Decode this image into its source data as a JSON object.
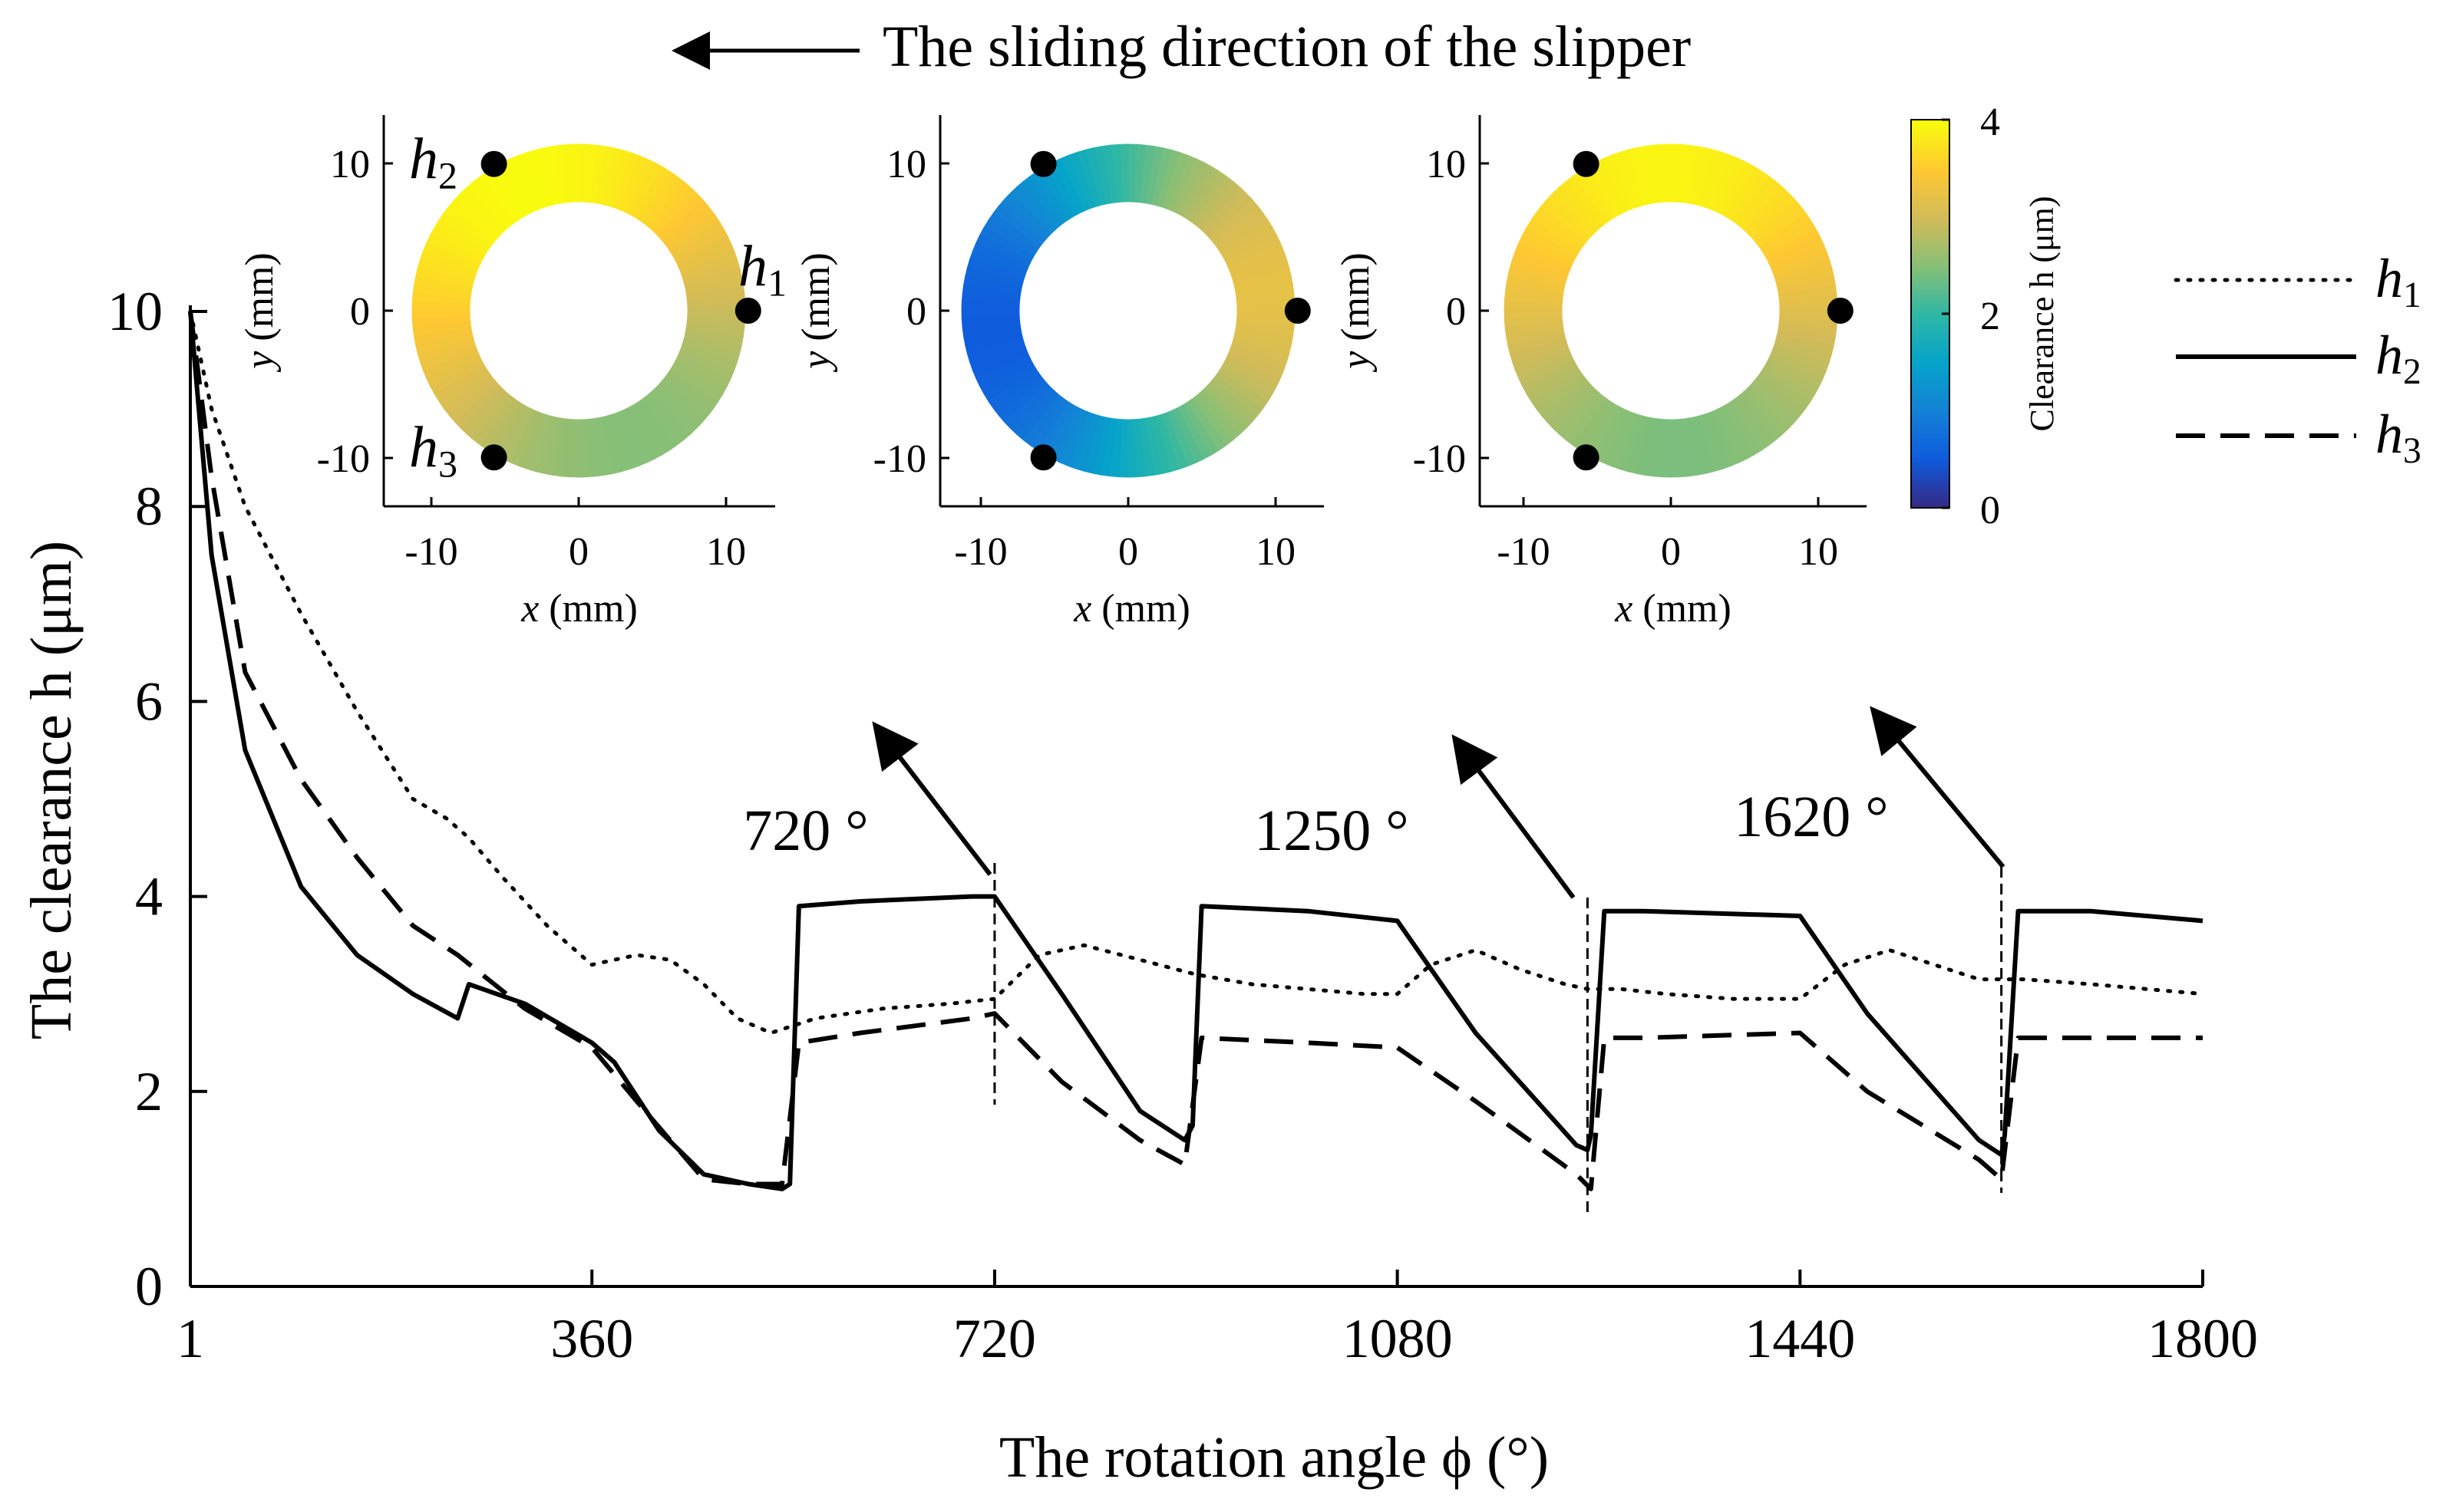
{
  "header": {
    "text": "The sliding direction of the slipper"
  },
  "colors": {
    "ink": "#000000",
    "colormap": [
      "#352a87",
      "#0f5cdd",
      "#1481d6",
      "#06a4ca",
      "#2eb7a4",
      "#87bf77",
      "#d1bb59",
      "#fec832",
      "#f9fb0e"
    ]
  },
  "chart_data": [
    {
      "type": "line",
      "xlabel": "The rotation angle ϕ (°)",
      "ylabel": "The clearance h (μm)",
      "xlim": [
        1,
        1800
      ],
      "ylim": [
        0,
        10
      ],
      "xticks": [
        1,
        360,
        720,
        1080,
        1440,
        1800
      ],
      "yticks": [
        0,
        2,
        4,
        6,
        8,
        10
      ],
      "legend_position": "right",
      "series": [
        {
          "name": "h1",
          "style": "dotted",
          "x": [
            1,
            20,
            50,
            100,
            150,
            200,
            230,
            250,
            280,
            320,
            360,
            400,
            430,
            460,
            490,
            520,
            560,
            620,
            680,
            720,
            760,
            800,
            850,
            900,
            950,
            1000,
            1050,
            1080,
            1110,
            1150,
            1190,
            1230,
            1250,
            1280,
            1320,
            1380,
            1440,
            1480,
            1520,
            1560,
            1600,
            1640,
            1700,
            1750,
            1800
          ],
          "values": [
            10,
            9.0,
            8.0,
            6.9,
            5.9,
            5.0,
            4.8,
            4.6,
            4.2,
            3.7,
            3.3,
            3.4,
            3.35,
            3.1,
            2.75,
            2.6,
            2.75,
            2.85,
            2.9,
            2.95,
            3.4,
            3.5,
            3.35,
            3.2,
            3.1,
            3.05,
            3.0,
            3.0,
            3.3,
            3.45,
            3.25,
            3.1,
            3.05,
            3.05,
            3.0,
            2.95,
            2.95,
            3.3,
            3.45,
            3.3,
            3.15,
            3.15,
            3.1,
            3.05,
            3.0
          ]
        },
        {
          "name": "h2",
          "style": "solid",
          "x": [
            1,
            20,
            50,
            100,
            150,
            200,
            240,
            250,
            300,
            360,
            380,
            420,
            460,
            500,
            530,
            537,
            545,
            600,
            700,
            720,
            780,
            850,
            890,
            897,
            905,
            1000,
            1080,
            1150,
            1240,
            1250,
            1253,
            1265,
            1300,
            1440,
            1500,
            1600,
            1620,
            1623,
            1635,
            1700,
            1800
          ],
          "values": [
            10,
            7.5,
            5.5,
            4.1,
            3.4,
            3.0,
            2.75,
            3.1,
            2.9,
            2.5,
            2.3,
            1.6,
            1.15,
            1.05,
            1.0,
            1.05,
            3.9,
            3.95,
            4.0,
            4.0,
            3.0,
            1.8,
            1.5,
            1.65,
            3.9,
            3.85,
            3.75,
            2.6,
            1.45,
            1.4,
            1.55,
            3.85,
            3.85,
            3.8,
            2.8,
            1.5,
            1.35,
            1.55,
            3.85,
            3.85,
            3.75
          ]
        },
        {
          "name": "h3",
          "style": "dashed",
          "x": [
            1,
            20,
            50,
            100,
            150,
            200,
            240,
            300,
            360,
            400,
            460,
            500,
            530,
            545,
            600,
            700,
            720,
            780,
            850,
            890,
            905,
            1000,
            1080,
            1150,
            1240,
            1253,
            1265,
            1300,
            1440,
            1500,
            1600,
            1620,
            1635,
            1700,
            1800
          ],
          "values": [
            10,
            8.3,
            6.3,
            5.2,
            4.4,
            3.7,
            3.4,
            2.85,
            2.45,
            1.9,
            1.1,
            1.05,
            1.05,
            2.5,
            2.6,
            2.75,
            2.8,
            2.1,
            1.5,
            1.25,
            2.55,
            2.5,
            2.45,
            1.9,
            1.15,
            1.0,
            2.55,
            2.55,
            2.6,
            2.0,
            1.3,
            1.1,
            2.55,
            2.55,
            2.55
          ]
        }
      ],
      "annotations": [
        {
          "label": "720 °",
          "x": 720
        },
        {
          "label": "1250 °",
          "x": 1250
        },
        {
          "label": "1620 °",
          "x": 1620
        }
      ]
    },
    {
      "type": "heatmap",
      "xlabel": "x (mm)",
      "ylabel": "y (mm)",
      "xticks": [
        -10,
        0,
        10
      ],
      "yticks": [
        -10,
        0,
        10
      ],
      "markers": {
        "h1": [
          11.5,
          0
        ],
        "h2": [
          -5.75,
          9.96
        ],
        "h3": [
          -5.75,
          -9.96
        ]
      },
      "clearance_at_markers": {
        "h1": 2.95,
        "h2": 4.0,
        "h3": 2.8
      }
    },
    {
      "type": "heatmap",
      "xlabel": "x (mm)",
      "ylabel": "y (mm)",
      "xticks": [
        -10,
        0,
        10
      ],
      "yticks": [
        -10,
        0,
        10
      ],
      "markers": {
        "h1": [
          11.5,
          0
        ],
        "h2": [
          -5.75,
          9.96
        ],
        "h3": [
          -5.75,
          -9.96
        ]
      },
      "clearance_at_markers": {
        "h1": 3.2,
        "h2": 1.4,
        "h3": 1.0
      }
    },
    {
      "type": "heatmap",
      "xlabel": "x (mm)",
      "ylabel": "y (mm)",
      "xticks": [
        -10,
        0,
        10
      ],
      "yticks": [
        -10,
        0,
        10
      ],
      "markers": {
        "h1": [
          11.5,
          0
        ],
        "h2": [
          -5.75,
          9.96
        ],
        "h3": [
          -5.75,
          -9.96
        ]
      },
      "clearance_at_markers": {
        "h1": 3.15,
        "h2": 3.85,
        "h3": 2.55
      }
    }
  ],
  "colorbar": {
    "label": "Clearance h (μm)",
    "min": 0,
    "max": 4,
    "ticks": [
      0,
      2,
      4
    ]
  },
  "legend": {
    "items": [
      {
        "sym": "h",
        "sub": "1",
        "style": "dotted"
      },
      {
        "sym": "h",
        "sub": "2",
        "style": "solid"
      },
      {
        "sym": "h",
        "sub": "3",
        "style": "dashed"
      }
    ]
  },
  "marker_labels": [
    {
      "sym": "h",
      "sub": "1"
    },
    {
      "sym": "h",
      "sub": "2"
    },
    {
      "sym": "h",
      "sub": "3"
    }
  ]
}
